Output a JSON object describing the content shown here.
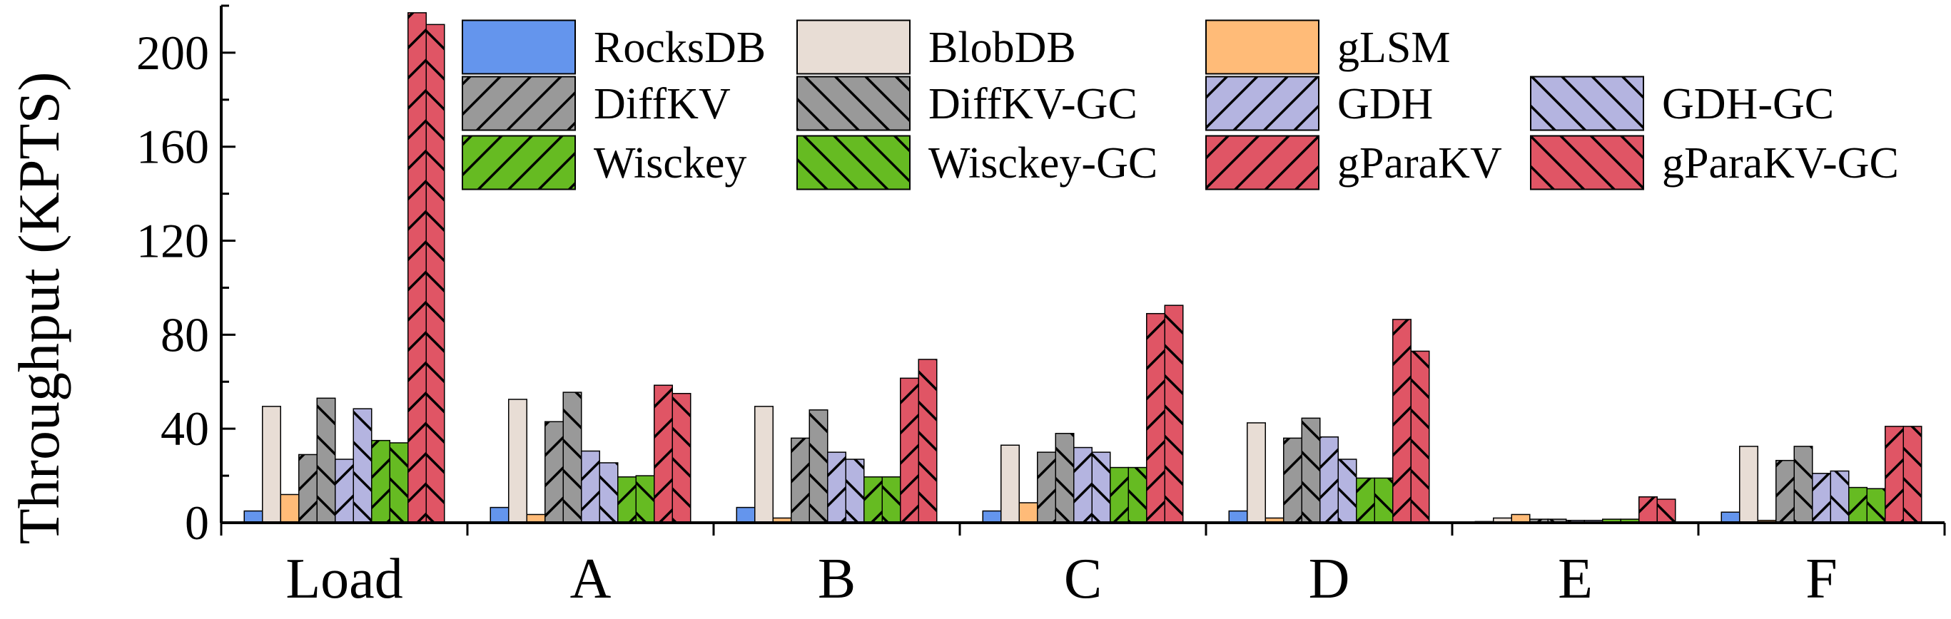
{
  "chart_data": {
    "type": "bar",
    "title": "",
    "xlabel": "",
    "ylabel": "Throughput (KPTS)",
    "ylim": [
      0,
      220
    ],
    "yticks": [
      0,
      40,
      80,
      120,
      160,
      200
    ],
    "grid": false,
    "legend_position": "top-center",
    "categories": [
      "Load",
      "A",
      "B",
      "C",
      "D",
      "E",
      "F"
    ],
    "series": [
      {
        "name": "RocksDB",
        "color": "#6495ED",
        "pattern": "none",
        "values": [
          5,
          6.5,
          6.5,
          5,
          5,
          0.5,
          4.5
        ]
      },
      {
        "name": "BlobDB",
        "color": "#E8DDD5",
        "pattern": "none",
        "values": [
          49.5,
          52.5,
          49.5,
          33,
          42.5,
          2,
          32.5
        ]
      },
      {
        "name": "gLSM",
        "color": "#FFBB78",
        "pattern": "none",
        "values": [
          12,
          3.5,
          2,
          8.5,
          2,
          3.5,
          1
        ]
      },
      {
        "name": "DiffKV",
        "color": "#999999",
        "pattern": "forward",
        "values": [
          29,
          43,
          36,
          30,
          36,
          1.5,
          26.5
        ]
      },
      {
        "name": "DiffKV-GC",
        "color": "#999999",
        "pattern": "backward",
        "values": [
          53,
          55.5,
          48,
          38,
          44.5,
          1.5,
          32.5
        ]
      },
      {
        "name": "GDH",
        "color": "#B4B4E0",
        "pattern": "forward",
        "values": [
          27,
          30.5,
          30,
          32,
          36.5,
          1,
          21
        ]
      },
      {
        "name": "GDH-GC",
        "color": "#B4B4E0",
        "pattern": "backward",
        "values": [
          48.5,
          25.5,
          27,
          30,
          27,
          1,
          22
        ]
      },
      {
        "name": "Wisckey",
        "color": "#66BB22",
        "pattern": "forward",
        "values": [
          35,
          19.5,
          19.5,
          23.5,
          19,
          1.5,
          15
        ]
      },
      {
        "name": "Wisckey-GC",
        "color": "#66BB22",
        "pattern": "backward",
        "values": [
          34,
          20,
          19.5,
          23.5,
          19,
          1.5,
          14.5
        ]
      },
      {
        "name": "gParaKV",
        "color": "#E05565",
        "pattern": "forward",
        "values": [
          217,
          58.5,
          61.5,
          89,
          86.5,
          11,
          41
        ]
      },
      {
        "name": "gParaKV-GC",
        "color": "#E05565",
        "pattern": "backward",
        "values": [
          212,
          55,
          69.5,
          92.5,
          73,
          10,
          41
        ]
      }
    ]
  }
}
